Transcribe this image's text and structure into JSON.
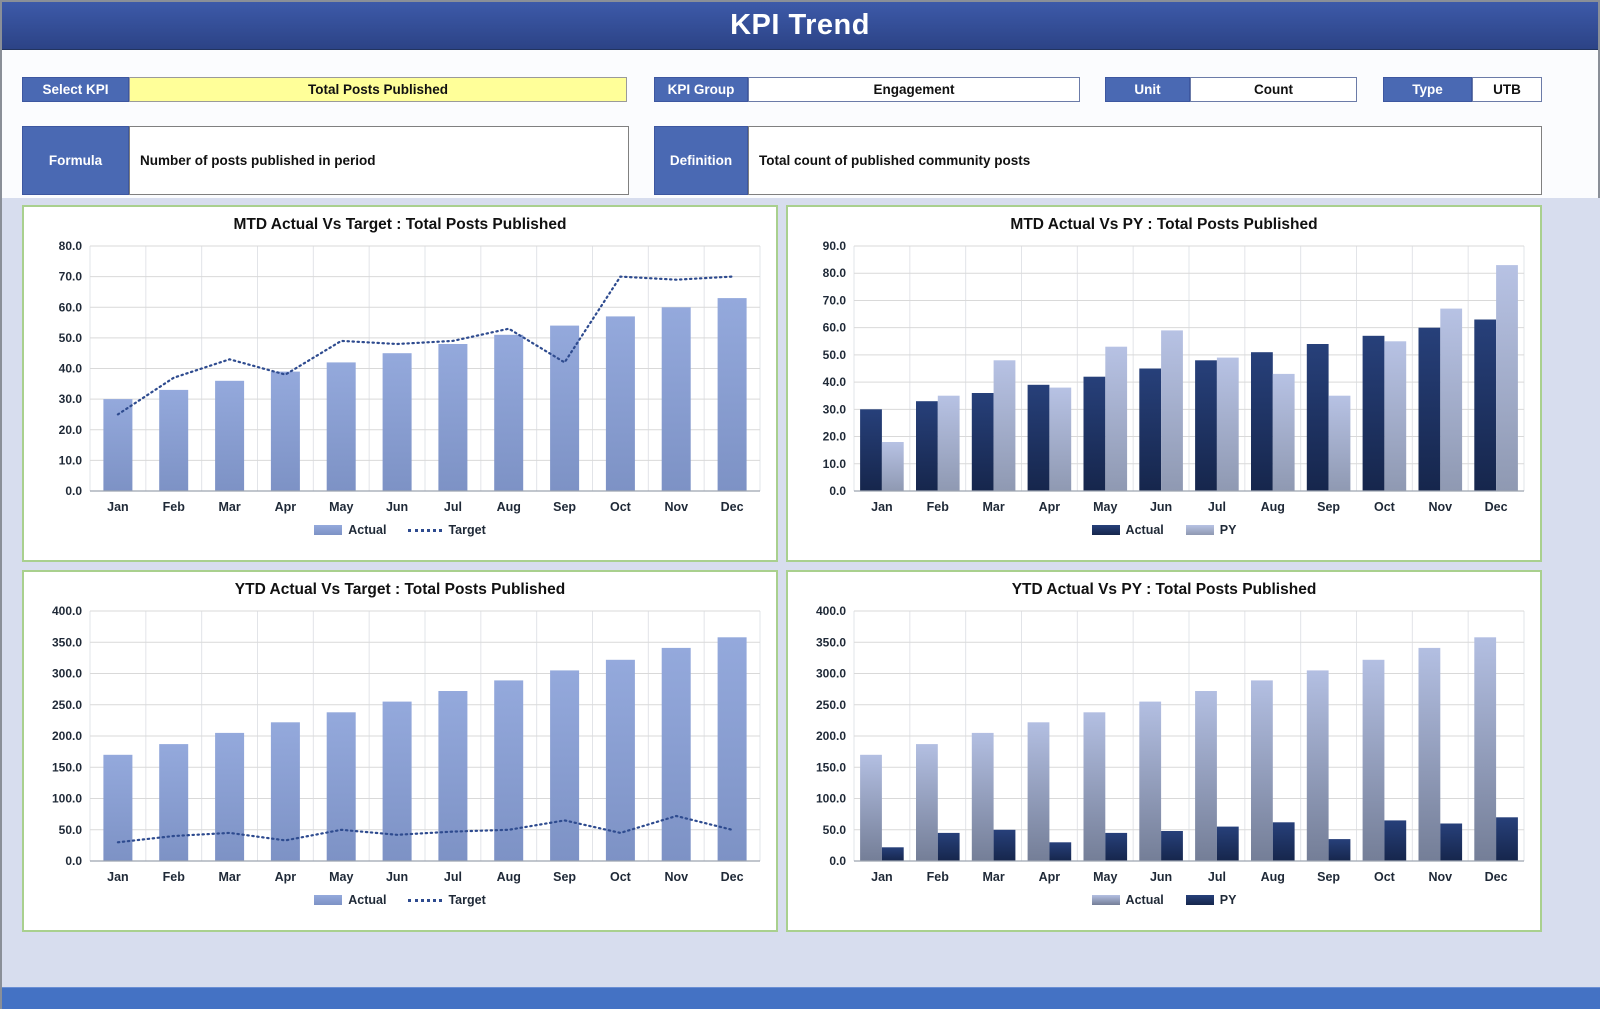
{
  "header": {
    "title": "KPI Trend"
  },
  "controls": {
    "select_kpi": {
      "label": "Select KPI",
      "value": "Total Posts Published"
    },
    "kpi_group": {
      "label": "KPI Group",
      "value": "Engagement"
    },
    "unit": {
      "label": "Unit",
      "value": "Count"
    },
    "type": {
      "label": "Type",
      "value": "UTB"
    },
    "formula": {
      "label": "Formula",
      "value": "Number of posts published in period"
    },
    "definition": {
      "label": "Definition",
      "value": "Total count of published community posts"
    }
  },
  "colors": {
    "header_blue": "#2F4C96",
    "label_blue": "#4A69B3",
    "highlight_yellow": "#FFFF99",
    "footer_blue": "#4472C4",
    "panel_border_green": "#A9D08E",
    "bar_light_blue": "#8EA9DB",
    "bar_dark_navy": "#24396B",
    "target_line_navy": "#2E4B8F"
  },
  "chart_data": [
    {
      "type": "bar",
      "title": "MTD Actual Vs Target : Total Posts Published",
      "categories": [
        "Jan",
        "Feb",
        "Mar",
        "Apr",
        "May",
        "Jun",
        "Jul",
        "Aug",
        "Sep",
        "Oct",
        "Nov",
        "Dec"
      ],
      "series": [
        {
          "name": "Actual",
          "kind": "bar",
          "color_top": "#94A9DC",
          "color_bottom": "#7D92C5",
          "values": [
            30,
            33,
            36,
            39,
            42,
            45,
            48,
            51,
            54,
            57,
            60,
            63
          ]
        },
        {
          "name": "Target",
          "kind": "line",
          "color": "#2E4B8F",
          "values": [
            25,
            37,
            43,
            38,
            49,
            48,
            49,
            53,
            42,
            70,
            69,
            70
          ]
        }
      ],
      "ylim": [
        0,
        80
      ],
      "ytick": 10,
      "grid": true,
      "legend_position": "bottom"
    },
    {
      "type": "bar",
      "title": "MTD Actual Vs PY : Total Posts Published",
      "categories": [
        "Jan",
        "Feb",
        "Mar",
        "Apr",
        "May",
        "Jun",
        "Jul",
        "Aug",
        "Sep",
        "Oct",
        "Nov",
        "Dec"
      ],
      "series": [
        {
          "name": "Actual",
          "kind": "bar",
          "color_top": "#27407A",
          "color_bottom": "#16264C",
          "values": [
            30,
            33,
            36,
            39,
            42,
            45,
            48,
            51,
            54,
            57,
            60,
            63
          ]
        },
        {
          "name": "PY",
          "kind": "bar",
          "color_top": "#B7C2E4",
          "color_bottom": "#8F99B2",
          "values": [
            18,
            35,
            48,
            38,
            53,
            59,
            49,
            43,
            35,
            55,
            67,
            83
          ]
        }
      ],
      "ylim": [
        0,
        90
      ],
      "ytick": 10,
      "grid": true,
      "legend_position": "bottom"
    },
    {
      "type": "bar",
      "title": "YTD Actual Vs Target : Total Posts Published",
      "categories": [
        "Jan",
        "Feb",
        "Mar",
        "Apr",
        "May",
        "Jun",
        "Jul",
        "Aug",
        "Sep",
        "Oct",
        "Nov",
        "Dec"
      ],
      "series": [
        {
          "name": "Actual",
          "kind": "bar",
          "color_top": "#94A9DC",
          "color_bottom": "#7D92C5",
          "values": [
            170,
            187,
            205,
            222,
            238,
            255,
            272,
            289,
            305,
            322,
            341,
            358
          ]
        },
        {
          "name": "Target",
          "kind": "line",
          "color": "#2E4B8F",
          "values": [
            30,
            40,
            45,
            33,
            50,
            42,
            47,
            50,
            65,
            45,
            72,
            50
          ]
        }
      ],
      "ylim": [
        0,
        400
      ],
      "ytick": 50,
      "grid": true,
      "legend_position": "bottom"
    },
    {
      "type": "bar",
      "title": "YTD Actual Vs PY : Total Posts Published",
      "categories": [
        "Jan",
        "Feb",
        "Mar",
        "Apr",
        "May",
        "Jun",
        "Jul",
        "Aug",
        "Sep",
        "Oct",
        "Nov",
        "Dec"
      ],
      "series": [
        {
          "name": "Actual",
          "kind": "bar",
          "color_top": "#B3BFE2",
          "color_bottom": "#747E97",
          "values": [
            170,
            187,
            205,
            222,
            238,
            255,
            272,
            289,
            305,
            322,
            341,
            358
          ]
        },
        {
          "name": "PY",
          "kind": "bar",
          "color_top": "#27407A",
          "color_bottom": "#16264C",
          "values": [
            22,
            45,
            50,
            30,
            45,
            48,
            55,
            62,
            35,
            65,
            60,
            70
          ]
        }
      ],
      "ylim": [
        0,
        400
      ],
      "ytick": 50,
      "grid": true,
      "legend_position": "bottom"
    }
  ]
}
